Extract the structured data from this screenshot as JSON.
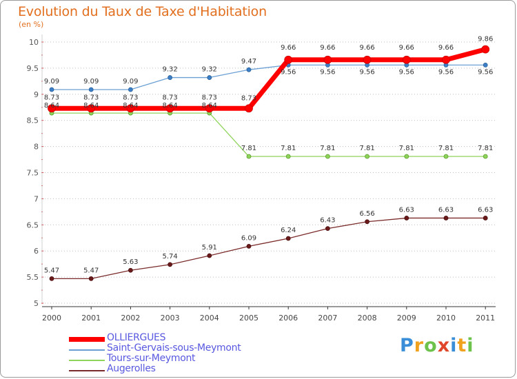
{
  "header": {
    "title": "Evolution du Taux de Taxe d'Habitation",
    "unit": "(en %)"
  },
  "brand": {
    "letters": [
      "P",
      "r",
      "o",
      "x",
      "i",
      "t",
      "i"
    ],
    "colors": [
      "#3a8ed8",
      "#f0a21e",
      "#6cc24a",
      "#e0462a",
      "#3a8ed8",
      "#f0a21e",
      "#6cc24a"
    ]
  },
  "chart_data": {
    "type": "line",
    "title": "Evolution du Taux de Taxe d'Habitation",
    "ylabel": "(en %)",
    "xlabel": "",
    "ylim": [
      5,
      10
    ],
    "y_ticks": [
      "5",
      "5.5",
      "6",
      "6.5",
      "7",
      "7.5",
      "8",
      "8.5",
      "9",
      "9.5",
      "10"
    ],
    "x": [
      "2000",
      "2001",
      "2002",
      "2003",
      "2004",
      "2005",
      "2006",
      "2007",
      "2008",
      "2009",
      "2010",
      "2011"
    ],
    "grid": "horizontal dotted",
    "legend_position": "bottom-left",
    "series": [
      {
        "name": "OLLIERGUES",
        "color": "#ff0000",
        "values": [
          8.73,
          8.73,
          8.73,
          8.73,
          8.73,
          8.73,
          9.66,
          9.66,
          9.66,
          9.66,
          9.66,
          9.86
        ],
        "labels": [
          "8.73",
          "8.73",
          "8.73",
          "8.73",
          "8.73",
          "8.73",
          "9.66",
          "9.66",
          "9.66",
          "9.66",
          "9.66",
          "9.86"
        ]
      },
      {
        "name": "Saint-Gervais-sous-Meymont",
        "color": "#6a9fd4",
        "values": [
          9.09,
          9.09,
          9.09,
          9.32,
          9.32,
          9.47,
          9.56,
          9.56,
          9.56,
          9.56,
          9.56,
          9.56
        ],
        "labels": [
          "9.09",
          "9.09",
          "9.09",
          "9.32",
          "9.32",
          "9.47",
          "9.56",
          "9.56",
          "9.56",
          "9.56",
          "9.56",
          "9.56"
        ]
      },
      {
        "name": "Tours-sur-Meymont",
        "color": "#8fd45a",
        "values": [
          8.64,
          8.64,
          8.64,
          8.64,
          8.64,
          7.81,
          7.81,
          7.81,
          7.81,
          7.81,
          7.81,
          7.81
        ],
        "labels": [
          "8.64",
          "8.64",
          "8.64",
          "8.64",
          "8.64",
          "7.81",
          "7.81",
          "7.81",
          "7.81",
          "7.81",
          "7.81",
          "7.81"
        ]
      },
      {
        "name": "Augerolles",
        "color": "#7a2a2a",
        "values": [
          5.47,
          5.47,
          5.63,
          5.74,
          5.91,
          6.09,
          6.24,
          6.43,
          6.56,
          6.63,
          6.63,
          6.63
        ],
        "labels": [
          "5.47",
          "5.47",
          "5.63",
          "5.74",
          "5.91",
          "6.09",
          "6.24",
          "6.43",
          "6.56",
          "6.63",
          "6.63",
          "6.63"
        ]
      }
    ]
  }
}
